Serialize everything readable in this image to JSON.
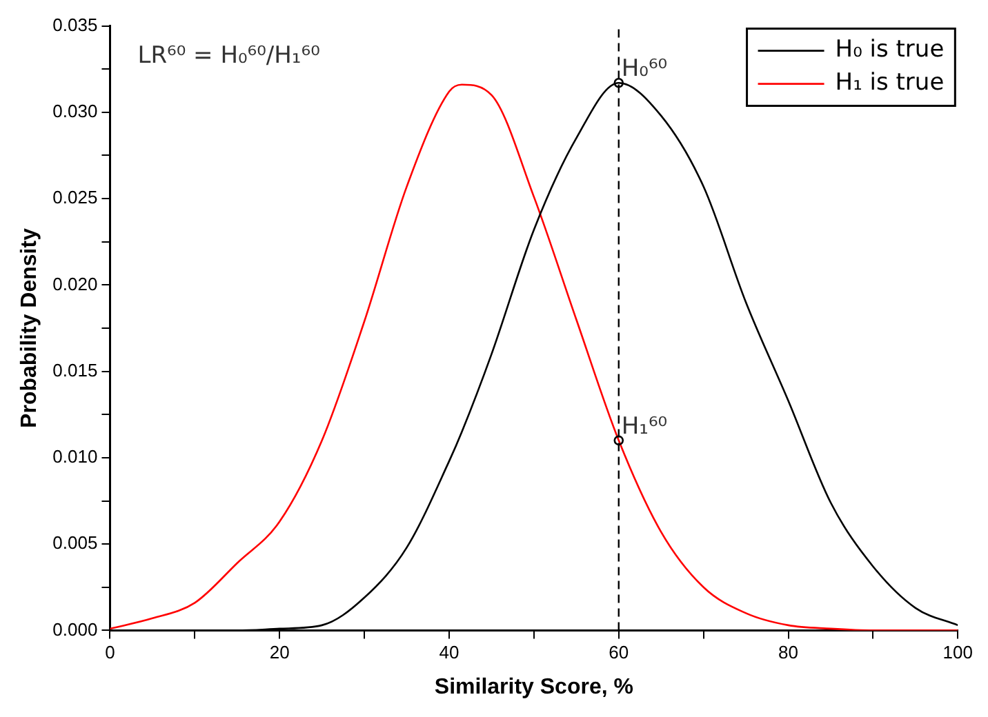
{
  "chart_data": {
    "type": "line",
    "xlabel": "Similarity Score, %",
    "ylabel": "Probability Density",
    "x": [
      0,
      5,
      10,
      15,
      20,
      25,
      30,
      35,
      40,
      41.5,
      45,
      50,
      55,
      60,
      65,
      70,
      75,
      80,
      85,
      90,
      95,
      100
    ],
    "series": [
      {
        "name": "H₀ is true",
        "color": "#000000",
        "values": [
          0,
          0,
          0,
          0,
          0.0001,
          0.0003,
          0.0019,
          0.0048,
          0.0098,
          0.0115,
          0.016,
          0.0232,
          0.0285,
          0.0317,
          0.0298,
          0.0257,
          0.019,
          0.0133,
          0.0074,
          0.0037,
          0.0013,
          0.0003
        ]
      },
      {
        "name": "H₁ is true",
        "color": "#ff0000",
        "values": [
          0.0001,
          0.0007,
          0.0016,
          0.0039,
          0.0063,
          0.011,
          0.0179,
          0.0257,
          0.0312,
          0.0316,
          0.031,
          0.0251,
          0.018,
          0.011,
          0.0057,
          0.0025,
          0.001,
          0.0003,
          0.0001,
          0,
          0,
          0
        ]
      }
    ],
    "xlim": [
      0,
      100
    ],
    "xticks": [
      0,
      {
        "value": 10,
        "label": null
      },
      20,
      {
        "value": 30,
        "label": null
      },
      40,
      {
        "value": 50,
        "label": null
      },
      60,
      {
        "value": 70,
        "label": null
      },
      80,
      {
        "value": 90,
        "label": null
      },
      100
    ],
    "ylim": [
      0,
      0.035
    ],
    "yticks": [
      "0.000",
      {
        "value": 0.0025,
        "label": null
      },
      {
        "value": 0.005,
        "label": "0.005"
      },
      {
        "value": 0.0075,
        "label": null
      },
      {
        "value": 0.01,
        "label": "0.010"
      },
      {
        "value": 0.0125,
        "label": null
      },
      {
        "value": 0.015,
        "label": "0.015"
      },
      {
        "value": 0.0175,
        "label": null
      },
      {
        "value": 0.02,
        "label": "0.020"
      },
      {
        "value": 0.0225,
        "label": null
      },
      {
        "value": 0.025,
        "label": "0.025"
      },
      {
        "value": 0.0275,
        "label": null
      },
      {
        "value": 0.03,
        "label": "0.030"
      },
      {
        "value": 0.0325,
        "label": null
      },
      {
        "value": 0.035,
        "label": "0.035"
      }
    ],
    "ref_lines": [
      {
        "axis": "x",
        "value": 60,
        "color": "#000000",
        "line_style": "dashed"
      }
    ],
    "annotations": [
      "LR⁶⁰ = H₀⁶⁰/H₁⁶⁰",
      {
        "text": "H₀⁶⁰",
        "x": 60,
        "y": 0.0317
      },
      {
        "text": "H₁⁶⁰",
        "x": 60,
        "y": 0.011
      }
    ],
    "legend": "top right",
    "grid": false,
    "marker": "none",
    "line_style": "solid"
  }
}
